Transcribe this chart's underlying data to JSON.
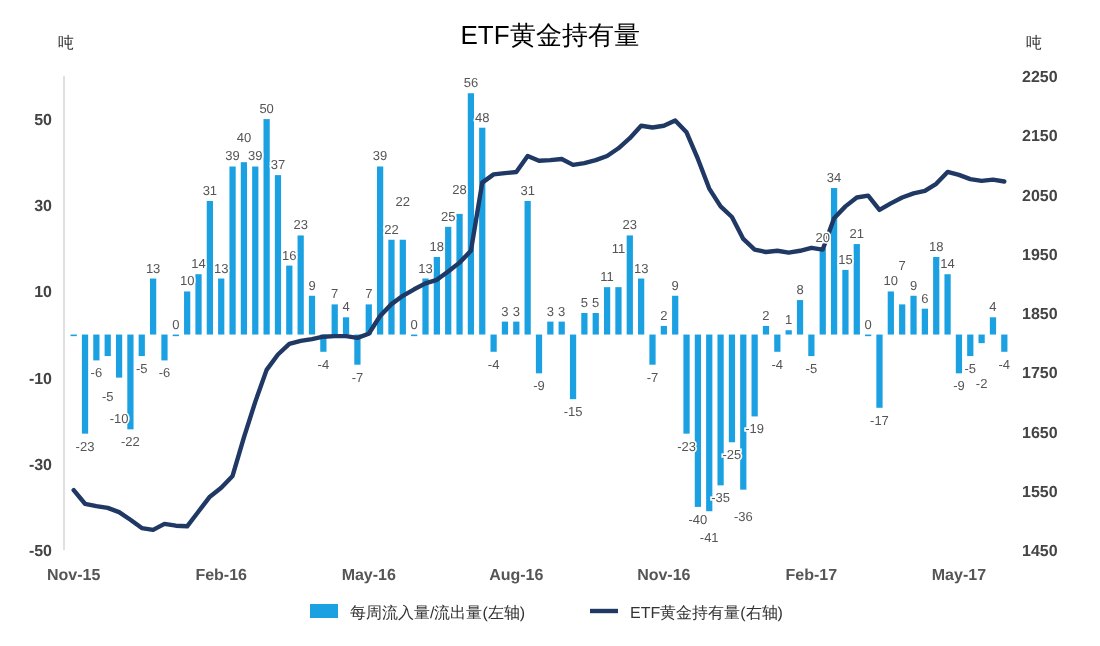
{
  "chart_data": {
    "type": "bar",
    "title": "ETF黄金持有量",
    "ylabel": "吨",
    "y2label": "吨",
    "categories": [
      "Nov-15",
      null,
      null,
      null,
      null,
      null,
      null,
      null,
      null,
      null,
      null,
      null,
      null,
      "Feb-16",
      null,
      null,
      null,
      null,
      null,
      null,
      null,
      null,
      null,
      null,
      null,
      null,
      "May-16",
      null,
      null,
      null,
      null,
      null,
      null,
      null,
      null,
      null,
      null,
      null,
      null,
      "Aug-16",
      null,
      null,
      null,
      null,
      null,
      null,
      null,
      null,
      null,
      null,
      null,
      null,
      "Nov-16",
      null,
      null,
      null,
      null,
      null,
      null,
      null,
      null,
      null,
      null,
      null,
      null,
      "Feb-17",
      null,
      null,
      null,
      null,
      null,
      null,
      null,
      null,
      null,
      null,
      null,
      null,
      "May-17",
      null,
      null,
      null,
      null
    ],
    "series": [
      {
        "name": "每周流入量/流出量(左轴)",
        "color": "#1ba1e2",
        "values": [
          0,
          -23,
          -6,
          -5,
          -10,
          -22,
          -5,
          13,
          -6,
          0,
          10,
          14,
          31,
          13,
          39,
          40,
          39,
          50,
          37,
          16,
          23,
          9,
          -4,
          7,
          4,
          -7,
          7,
          39,
          22,
          22,
          0,
          13,
          18,
          25,
          28,
          56,
          48,
          -4,
          3,
          3,
          31,
          -9,
          3,
          3,
          -15,
          5,
          5,
          11,
          11,
          23,
          13,
          -7,
          2,
          9,
          -23,
          -40,
          -41,
          -35,
          -25,
          -36,
          -19,
          2,
          -4,
          1,
          8,
          -5,
          20,
          34,
          15,
          21,
          0,
          -17,
          10,
          7,
          9,
          6,
          18,
          14,
          -9,
          -5,
          -2,
          4,
          -4
        ],
        "value_labels": [
          null,
          "-23",
          "-6",
          "-5",
          "-10",
          "-22",
          "-5",
          "13",
          "-6",
          "0",
          "10",
          "14",
          "31",
          "13",
          "39",
          "40",
          "39",
          "50",
          "37",
          "16",
          "23",
          "9",
          "-4",
          "7",
          "4",
          "-7",
          "7",
          "39",
          "22",
          "22",
          "0",
          "13",
          "18",
          "25",
          "28",
          "56",
          "48",
          "-4",
          "3",
          "3",
          "31",
          "-9",
          "3",
          "3",
          "-15",
          "5",
          "5",
          "11",
          "11",
          "23",
          "13",
          "-7",
          "2",
          "9",
          "-23",
          "-40",
          "-41",
          "-35",
          "-25",
          "-36",
          "-19",
          "2",
          "-4",
          "1",
          "8",
          "-5",
          "20",
          "34",
          "15",
          "21",
          "0",
          "-17",
          "10",
          "7",
          "9",
          "6",
          "18",
          "14",
          "-9",
          "-5",
          "-2",
          "4",
          "-4"
        ]
      },
      {
        "name": "ETF黄金持有量(右轴)",
        "type": "line",
        "axis": "y2",
        "color": "#1f3864",
        "values": [
          1551,
          1528,
          1524,
          1521,
          1514,
          1501,
          1487,
          1484,
          1494,
          1491,
          1490,
          1515,
          1540,
          1555,
          1575,
          1640,
          1700,
          1754,
          1780,
          1798,
          1803,
          1806,
          1810,
          1811,
          1811,
          1808,
          1815,
          1845,
          1865,
          1879,
          1890,
          1900,
          1906,
          1920,
          1935,
          1955,
          2070,
          2084,
          2086,
          2088,
          2115,
          2107,
          2108,
          2110,
          2100,
          2103,
          2108,
          2115,
          2128,
          2145,
          2166,
          2163,
          2166,
          2175,
          2155,
          2110,
          2060,
          2030,
          2012,
          1975,
          1957,
          1953,
          1955,
          1952,
          1955,
          1960,
          1957,
          2010,
          2030,
          2045,
          2048,
          2024,
          2035,
          2045,
          2052,
          2056,
          2068,
          2088,
          2083,
          2076,
          2073,
          2075,
          2072
        ]
      }
    ],
    "ylim": [
      -50,
      60
    ],
    "yticks": [
      50,
      30,
      10,
      -10,
      -30,
      -50
    ],
    "y2lim": [
      1450,
      2250
    ],
    "y2ticks": [
      2250,
      2150,
      2050,
      1950,
      1850,
      1750,
      1650,
      1550,
      1450
    ],
    "legend": "bottom"
  }
}
